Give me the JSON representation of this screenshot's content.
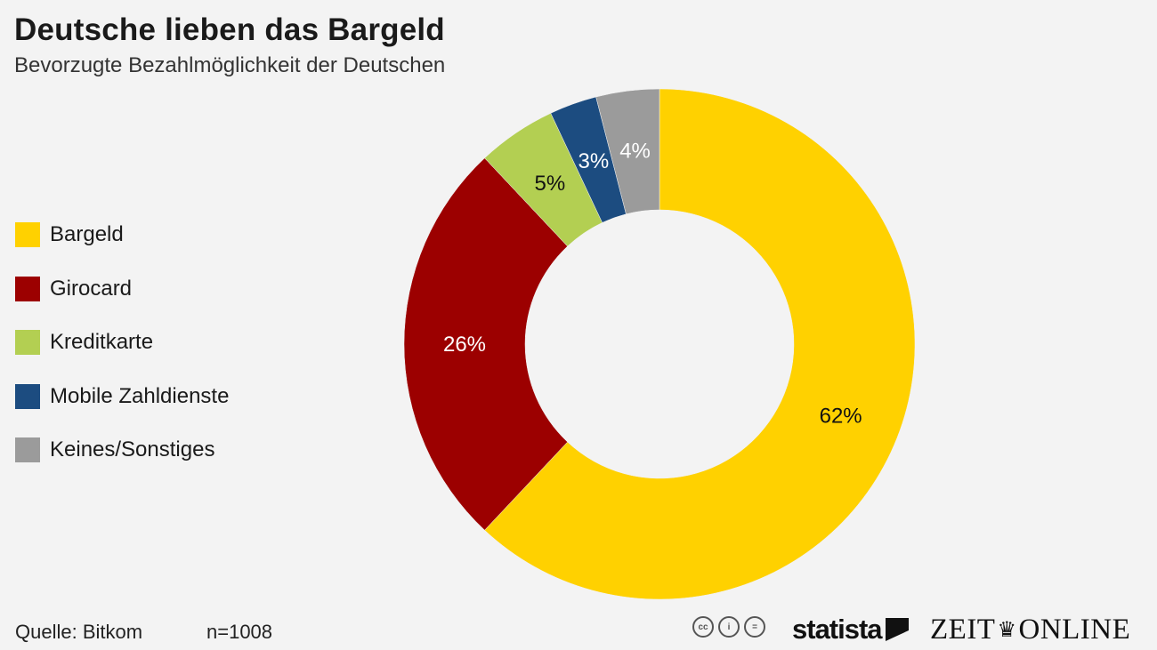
{
  "header": {
    "title": "Deutsche lieben das Bargeld",
    "subtitle": "Bevorzugte Bezahlmöglichkeit der Deutschen"
  },
  "legend": [
    {
      "label": "Bargeld",
      "color": "#ffd100"
    },
    {
      "label": "Girocard",
      "color": "#9c0000"
    },
    {
      "label": "Kreditkarte",
      "color": "#b3cf52"
    },
    {
      "label": "Mobile Zahldienste",
      "color": "#1c4c80"
    },
    {
      "label": "Keines/Sonstiges",
      "color": "#9b9b9b"
    }
  ],
  "chart_data": {
    "type": "pie",
    "variant": "donut",
    "title": "Deutsche lieben das Bargeld",
    "subtitle": "Bevorzugte Bezahlmöglichkeit der Deutschen",
    "unit": "%",
    "categories": [
      "Bargeld",
      "Girocard",
      "Kreditkarte",
      "Mobile Zahldienste",
      "Keines/Sonstiges"
    ],
    "values": [
      62,
      26,
      5,
      3,
      4
    ],
    "labels": [
      "62%",
      "26%",
      "5%",
      "3%",
      "4%"
    ],
    "colors": [
      "#ffd100",
      "#9c0000",
      "#b3cf52",
      "#1c4c80",
      "#9b9b9b"
    ],
    "label_colors": [
      "#111111",
      "#ffffff",
      "#111111",
      "#ffffff",
      "#ffffff"
    ],
    "legend_position": "left"
  },
  "footer": {
    "source": "Quelle: Bitkom",
    "sample": "n=1008",
    "license_icons": [
      "cc-icon",
      "by-icon",
      "nd-icon"
    ],
    "license_glyphs": [
      "cc",
      "i",
      "="
    ],
    "brand_statista": "statista",
    "brand_zeit": "ZEIT",
    "brand_online": "ONLINE"
  }
}
